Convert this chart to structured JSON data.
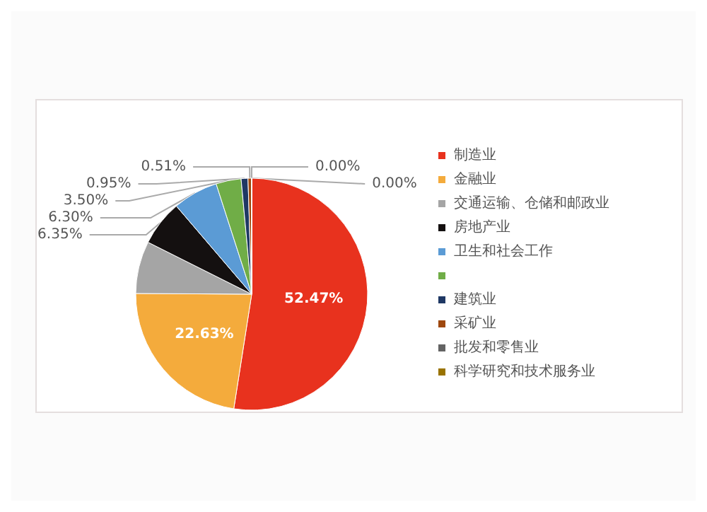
{
  "chart_data": {
    "type": "pie",
    "categories": [
      "制造业",
      "金融业",
      "交通运输、仓储和邮政业",
      "房地产业",
      "卫生和社会工作",
      null,
      "建筑业",
      "采矿业",
      "批发和零售业",
      "科学研究和技术服务业"
    ],
    "values": [
      52.47,
      22.63,
      7.29,
      6.35,
      6.3,
      3.5,
      0.95,
      0.51,
      0,
      0
    ],
    "value_labels": [
      "52.47%",
      "22.63%",
      null,
      "6.35%",
      "6.30%",
      "3.50%",
      "0.95%",
      "0.51%",
      "0.00%",
      "0.00%"
    ],
    "colors": [
      "#e8321e",
      "#f4ab3c",
      "#a5a5a5",
      "#141010",
      "#5b9bd5",
      "#70ad47",
      "#1f3864",
      "#9e480e",
      "#636363",
      "#997300"
    ],
    "legend": "right"
  }
}
